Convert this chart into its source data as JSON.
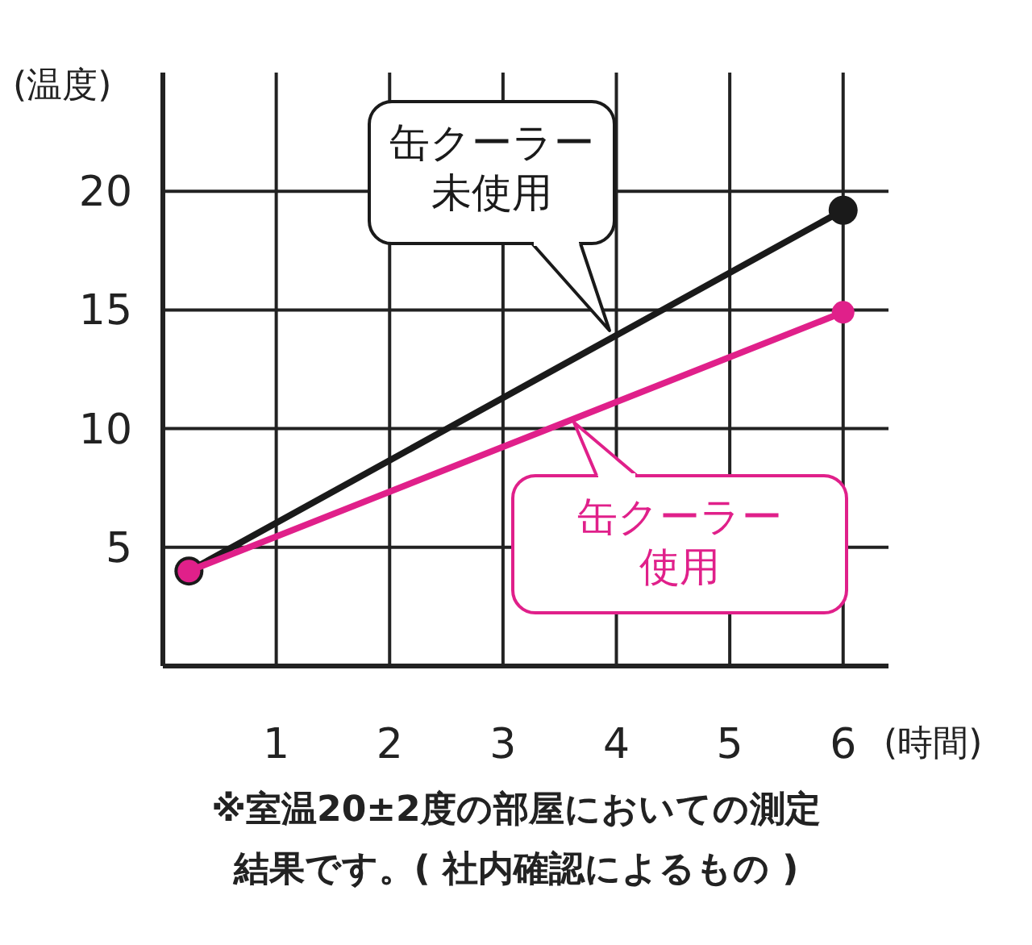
{
  "chart_data": {
    "type": "line",
    "xlabel": "(時間)",
    "ylabel": "(温度)",
    "xlim": [
      0,
      6.4
    ],
    "ylim": [
      0,
      25
    ],
    "xticks": [
      1,
      2,
      3,
      4,
      5,
      6
    ],
    "yticks": [
      5,
      10,
      15,
      20
    ],
    "grid": true,
    "legend": "right",
    "marker": "circle",
    "line_style": "solid",
    "x": [
      0.23,
      6
    ],
    "series": [
      {
        "name": "缶クーラー未使用",
        "color": "#1a1a1a",
        "values": [
          4,
          19.2
        ]
      },
      {
        "name": "缶クーラー使用",
        "color": "#e0208a",
        "values": [
          4,
          14.9
        ]
      }
    ],
    "annotations": [
      "※室温20±2度の部屋においての測定結果です。( 社内確認によるもの )"
    ]
  }
}
